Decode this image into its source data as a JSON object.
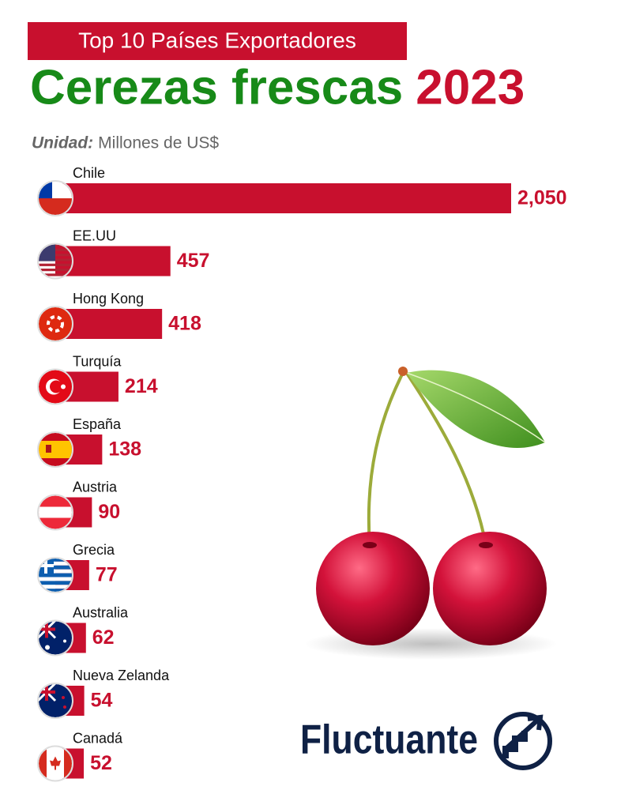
{
  "chart_data": {
    "type": "bar",
    "orientation": "horizontal",
    "badge": "Top 10 Países Exportadores",
    "title": "Cerezas frescas",
    "title_year": "2023",
    "unit_label": "Unidad:",
    "unit": "Millones de US$",
    "categories": [
      "Chile",
      "EE.UU",
      "Hong Kong",
      "Turquía",
      "España",
      "Austria",
      "Grecia",
      "Australia",
      "Nueva Zelanda",
      "Canadá"
    ],
    "values": [
      2050,
      457,
      418,
      214,
      138,
      90,
      77,
      62,
      54,
      52
    ],
    "value_labels": [
      "2,050",
      "457",
      "418",
      "214",
      "138",
      "90",
      "77",
      "62",
      "54",
      "52"
    ],
    "color": "#c8102e",
    "brand": "Fluctuante"
  }
}
